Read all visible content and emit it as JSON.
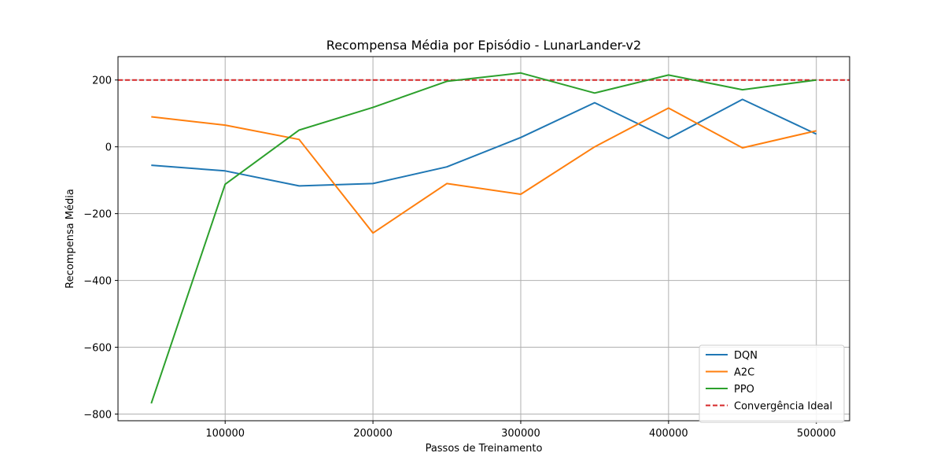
{
  "chart_data": {
    "type": "line",
    "title": "Recompensa Média por Episódio - LunarLander-v2",
    "xlabel": "Passos de Treinamento",
    "ylabel": "Recompensa Média",
    "xlim": [
      27500,
      522500
    ],
    "ylim": [
      -820,
      270
    ],
    "xticks": [
      100000,
      200000,
      300000,
      400000,
      500000
    ],
    "yticks": [
      -800,
      -600,
      -400,
      -200,
      0,
      200
    ],
    "x": [
      50000,
      100000,
      150000,
      200000,
      250000,
      300000,
      350000,
      400000,
      450000,
      500000
    ],
    "series": [
      {
        "name": "DQN",
        "color": "#1f77b4",
        "values": [
          -55,
          -72,
          -117,
          -110,
          -60,
          28,
          132,
          25,
          142,
          38
        ]
      },
      {
        "name": "A2C",
        "color": "#ff7f0e",
        "values": [
          90,
          65,
          22,
          -258,
          -110,
          -142,
          0,
          116,
          -3,
          48
        ]
      },
      {
        "name": "PPO",
        "color": "#2ca02c",
        "values": [
          -768,
          -112,
          50,
          118,
          196,
          221,
          161,
          215,
          171,
          200
        ]
      }
    ],
    "reference_line": {
      "name": "Convergência Ideal",
      "y": 200,
      "color": "#d62728",
      "style": "dashed"
    },
    "grid": true,
    "legend_position": "lower-right"
  }
}
